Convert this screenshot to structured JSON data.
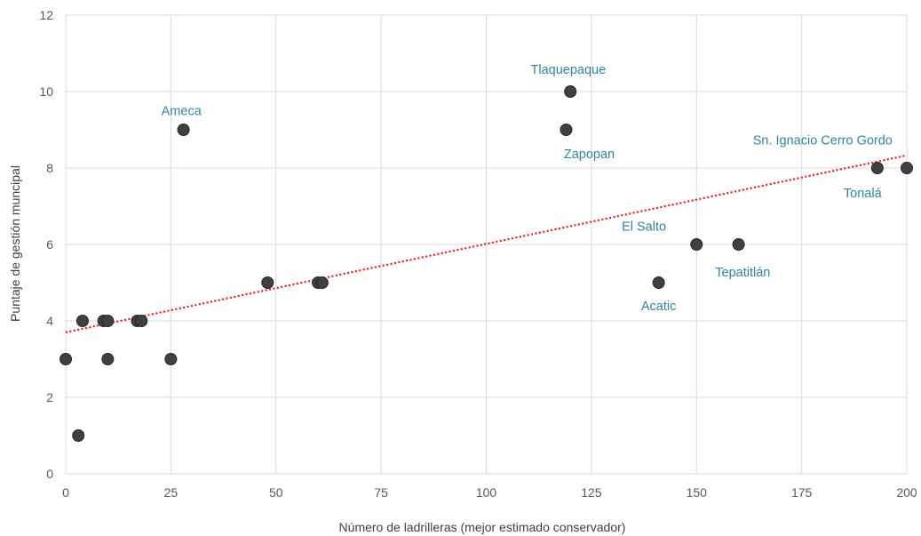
{
  "chart_data": {
    "type": "scatter",
    "xlabel": "Número de ladrilleras  (mejor estimado conservador)",
    "ylabel": "Puntaje de gestión muncipal",
    "xlim": [
      0,
      200
    ],
    "ylim": [
      0,
      12
    ],
    "xticks": [
      "0",
      "25",
      "50",
      "75",
      "100",
      "125",
      "150",
      "175",
      "200"
    ],
    "yticks": [
      "0",
      "2",
      "4",
      "6",
      "8",
      "10",
      "12"
    ],
    "grid": true,
    "marker_color": "#404040",
    "label_color": "#31859c",
    "trendline": {
      "type": "linear",
      "style": "dotted",
      "color": "#ff0000",
      "start": [
        0,
        3.7
      ],
      "end": [
        200,
        8.33
      ]
    },
    "points": [
      {
        "x": 0,
        "y": 3
      },
      {
        "x": 3,
        "y": 1
      },
      {
        "x": 4,
        "y": 4
      },
      {
        "x": 9,
        "y": 4
      },
      {
        "x": 10,
        "y": 4
      },
      {
        "x": 10,
        "y": 3
      },
      {
        "x": 17,
        "y": 4
      },
      {
        "x": 18,
        "y": 4
      },
      {
        "x": 25,
        "y": 3
      },
      {
        "x": 28,
        "y": 9
      },
      {
        "x": 48,
        "y": 5
      },
      {
        "x": 60,
        "y": 5
      },
      {
        "x": 61,
        "y": 5
      },
      {
        "x": 119,
        "y": 9
      },
      {
        "x": 120,
        "y": 10
      },
      {
        "x": 141,
        "y": 5
      },
      {
        "x": 150,
        "y": 6
      },
      {
        "x": 160,
        "y": 6
      },
      {
        "x": 193,
        "y": 8
      },
      {
        "x": 200,
        "y": 8
      }
    ],
    "annotations": [
      {
        "text": "Ameca",
        "x": 27.5,
        "y": 9.5
      },
      {
        "text": "Tlaquepaque",
        "x": 119.5,
        "y": 10.58
      },
      {
        "text": "Zapopan",
        "x": 124.5,
        "y": 8.37
      },
      {
        "text": "Sn. Ignacio Cerro Gordo",
        "x": 180,
        "y": 8.73
      },
      {
        "text": "Tonalá",
        "x": 189.5,
        "y": 7.35
      },
      {
        "text": "El Salto",
        "x": 137.5,
        "y": 6.48
      },
      {
        "text": "Tepatitlán",
        "x": 161,
        "y": 5.28
      },
      {
        "text": "Acatic",
        "x": 141,
        "y": 4.4
      }
    ]
  }
}
